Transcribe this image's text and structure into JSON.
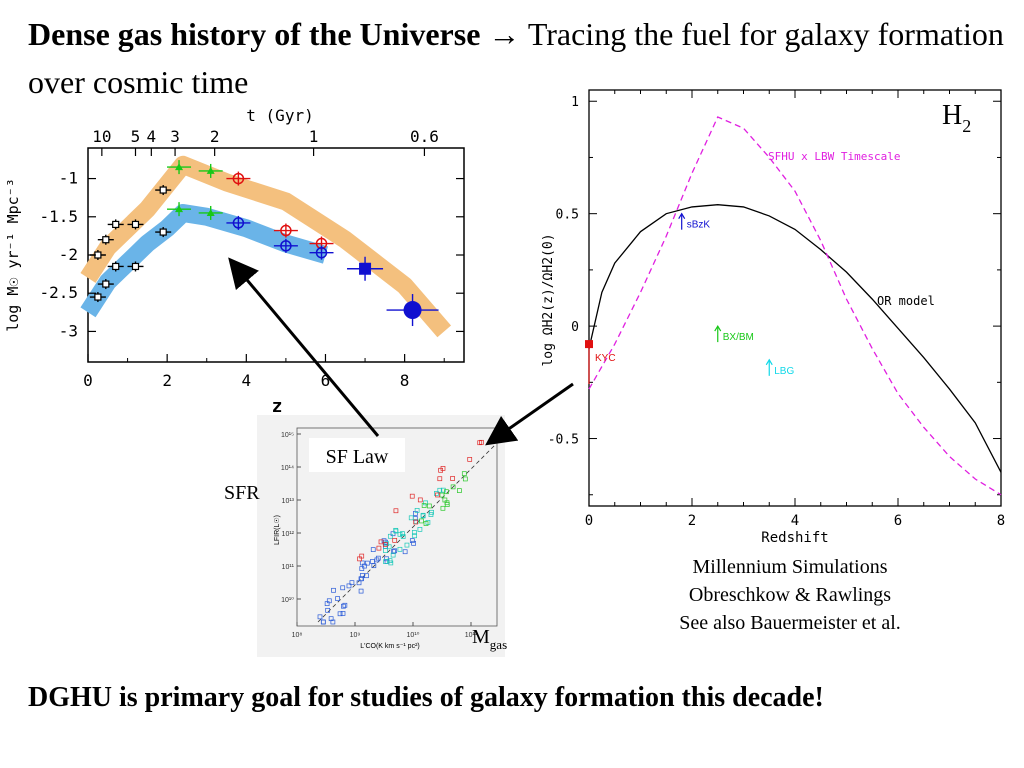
{
  "slide": {
    "title_bold": "Dense gas history of the Universe",
    "title_arrow": "→",
    "title_rest": "Tracing the fuel for galaxy formation over cosmic time",
    "footer": "DGHU is primary goal for studies of galaxy formation this decade!",
    "credits": [
      "Millennium Simulations",
      "Obreschkow & Rawlings",
      "See also Bauermeister et al."
    ]
  },
  "colors": {
    "band_orange": "#f4c07e",
    "band_blue": "#6ab4e8",
    "sfhu_magenta": "#e020e0",
    "or_black": "#000000",
    "kyc_red": "#e01010",
    "sbzk_blue": "#1010d0",
    "bxbm_green": "#18c818",
    "lbg_cyan": "#10d8e8"
  },
  "inset_labels": {
    "sf_law": "SF Law",
    "sfr": "SFR",
    "mgas_base": "M",
    "mgas_sub": "gas"
  },
  "chart_data": [
    {
      "id": "sfr_history",
      "type": "scatter",
      "xlabel": "z",
      "ylabel": "log M☉ yr⁻¹ Mpc⁻³",
      "top_axis_label": "t (Gyr)",
      "top_ticks": [
        "10",
        "5",
        "4",
        "3",
        "2",
        "1",
        "0.6"
      ],
      "x_ticks": [
        "0",
        "2",
        "4",
        "6",
        "8"
      ],
      "y_ticks": [
        "-1",
        "-1.5",
        "-2",
        "-2.5",
        "-3"
      ],
      "xlim": [
        0,
        9.5
      ],
      "ylim": [
        -3.4,
        -0.6
      ],
      "bands": [
        {
          "name": "upper band",
          "color": "orange",
          "x": [
            0,
            0.5,
            1.5,
            2.4,
            3.5,
            5.0,
            6.5,
            8.0,
            9.0
          ],
          "y": [
            -2.3,
            -1.9,
            -1.4,
            -0.82,
            -1.05,
            -1.3,
            -1.8,
            -2.4,
            -3.0
          ]
        },
        {
          "name": "lower band",
          "color": "blue",
          "x": [
            0,
            0.5,
            1.0,
            1.5,
            2.0,
            2.4,
            3.0,
            4.0,
            5.0,
            6.0
          ],
          "y": [
            -2.75,
            -2.35,
            -2.1,
            -1.85,
            -1.65,
            -1.45,
            -1.5,
            -1.65,
            -1.85,
            -2.0
          ]
        }
      ],
      "series": [
        {
          "color": "black",
          "marker": "square",
          "x": [
            0.25,
            0.45,
            0.7,
            1.2,
            1.9
          ],
          "y": [
            -2.0,
            -1.8,
            -1.6,
            -1.6,
            -1.15
          ]
        },
        {
          "color": "black",
          "marker": "square",
          "x": [
            0.25,
            0.45,
            0.7,
            1.2,
            1.9
          ],
          "y": [
            -2.55,
            -2.38,
            -2.15,
            -2.15,
            -1.7
          ]
        },
        {
          "color": "green",
          "marker": "triangle",
          "x": [
            2.3,
            3.1
          ],
          "y": [
            -0.85,
            -0.9
          ]
        },
        {
          "color": "green",
          "marker": "triangle",
          "x": [
            2.3,
            3.1
          ],
          "y": [
            -1.4,
            -1.45
          ]
        },
        {
          "color": "red",
          "marker": "circle",
          "x": [
            3.8,
            5.0,
            5.9
          ],
          "y": [
            -1.0,
            -1.68,
            -1.85
          ]
        },
        {
          "color": "blue",
          "marker": "circle",
          "x": [
            3.8,
            5.0,
            5.9
          ],
          "y": [
            -1.58,
            -1.88,
            -1.97
          ]
        },
        {
          "color": "blue",
          "marker": "filled-square",
          "x": [
            7.0
          ],
          "y": [
            -2.18
          ]
        },
        {
          "color": "blue",
          "marker": "filled-circle",
          "x": [
            8.2
          ],
          "y": [
            -2.72
          ]
        }
      ]
    },
    {
      "id": "h2_history",
      "type": "line",
      "title": "H2",
      "xlabel": "Redshift",
      "ylabel": "log ΩH2(z)/ΩH2(0)",
      "xlim": [
        0,
        8
      ],
      "ylim": [
        -0.8,
        1.05
      ],
      "x_ticks": [
        "0",
        "2",
        "4",
        "6",
        "8"
      ],
      "y_ticks": [
        "-0.5",
        "0",
        "0.5",
        "1"
      ],
      "series": [
        {
          "name": "OR model",
          "style": "solid",
          "x": [
            0,
            0.25,
            0.5,
            1.0,
            1.5,
            2.0,
            2.5,
            3.0,
            3.5,
            4.0,
            4.5,
            5.0,
            5.5,
            6.0,
            6.5,
            7.0,
            7.5,
            8.0
          ],
          "y": [
            -0.1,
            0.15,
            0.28,
            0.42,
            0.5,
            0.53,
            0.54,
            0.53,
            0.49,
            0.43,
            0.34,
            0.24,
            0.12,
            -0.01,
            -0.14,
            -0.28,
            -0.43,
            -0.65
          ]
        },
        {
          "name": "SFHU x LBW Timescale",
          "style": "dashed",
          "x": [
            0,
            0.5,
            1.0,
            1.5,
            2.0,
            2.5,
            3.0,
            3.5,
            4.0,
            4.5,
            5.0,
            5.5,
            6.0,
            6.5,
            7.0,
            7.5,
            8.0
          ],
          "y": [
            -0.28,
            -0.08,
            0.15,
            0.4,
            0.68,
            0.93,
            0.88,
            0.75,
            0.6,
            0.38,
            0.12,
            -0.1,
            -0.3,
            -0.45,
            -0.58,
            -0.68,
            -0.75
          ]
        }
      ],
      "points": [
        {
          "label": "KYC",
          "color": "red",
          "x": 0,
          "y": -0.08
        },
        {
          "label": "sBzK",
          "color": "blue",
          "x": 1.8,
          "y": 0.5
        },
        {
          "label": "BX/BM",
          "color": "green",
          "x": 2.5,
          "y": 0.0
        },
        {
          "label": "LBG",
          "color": "cyan",
          "x": 3.5,
          "y": -0.15
        }
      ]
    },
    {
      "id": "sf_law_inset",
      "type": "scatter",
      "xlabel": "L'CO(K km s⁻¹ pc²)",
      "ylabel": "LFIR(L☉)",
      "x_ticks": [
        "10⁸",
        "10⁹",
        "10¹⁰",
        "10¹¹"
      ],
      "y_ticks": [
        "10¹⁵",
        "10¹⁴",
        "10¹³",
        "10¹²",
        "10¹¹",
        "10¹⁰"
      ]
    }
  ]
}
